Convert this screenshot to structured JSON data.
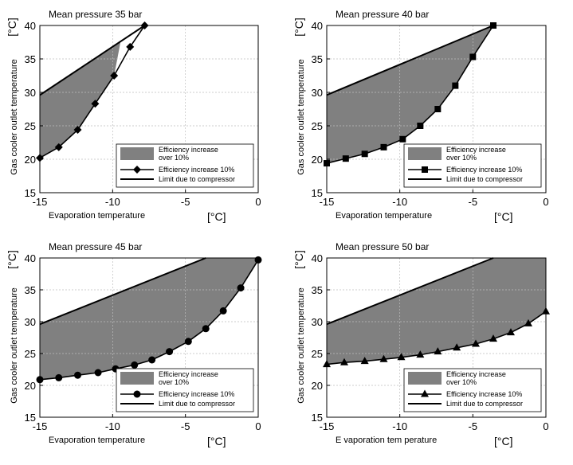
{
  "chart_data": [
    {
      "type": "area",
      "title": "Mean pressure 35 bar",
      "xlabel": "Evaporation temperature",
      "ylabel": "Gas cooler outlet temperature",
      "x_unit": "[°C]",
      "y_unit": "[°C]",
      "xlim": [
        -15,
        0
      ],
      "ylim": [
        15,
        40
      ],
      "xticks": [
        "-15",
        "-10",
        "-5",
        "0"
      ],
      "yticks": [
        "15",
        "20",
        "25",
        "30",
        "35",
        "40"
      ],
      "grid": true,
      "legend_position": "bottom-right",
      "marker": "diamond",
      "legend": [
        "Efficiency increase over 10%",
        "Efficiency increase 10%",
        "Limit due to compressor"
      ],
      "limit_line": {
        "x": [
          -15,
          -7.8
        ],
        "y": [
          29.6,
          40
        ]
      },
      "series": [
        {
          "name": "Efficiency increase 10%",
          "x": [
            -15,
            -13.7,
            -12.4,
            -11.2,
            -9.9,
            -8.8,
            -7.8
          ],
          "y": [
            20.2,
            21.8,
            24.4,
            28.3,
            32.5,
            36.8,
            40.0
          ]
        }
      ]
    },
    {
      "type": "area",
      "title": "Mean pressure 40 bar",
      "xlabel": "Evaporation temperature",
      "ylabel": "Gas cooler outlet temperature",
      "x_unit": "[°C]",
      "y_unit": "[°C]",
      "xlim": [
        -15,
        0
      ],
      "ylim": [
        15,
        40
      ],
      "xticks": [
        "-15",
        "-10",
        "-5",
        "0"
      ],
      "yticks": [
        "15",
        "20",
        "25",
        "30",
        "35",
        "40"
      ],
      "grid": true,
      "legend_position": "bottom-right",
      "marker": "square",
      "legend": [
        "Efficiency increase over 10%",
        "Efficiency increase 10%",
        "Limit due to compressor"
      ],
      "limit_line": {
        "x": [
          -15,
          -3.6
        ],
        "y": [
          29.6,
          40
        ]
      },
      "series": [
        {
          "name": "Efficiency increase 10%",
          "x": [
            -15,
            -13.7,
            -12.4,
            -11.1,
            -9.8,
            -8.6,
            -7.4,
            -6.2,
            -5.0,
            -3.6
          ],
          "y": [
            19.4,
            20.1,
            20.8,
            21.8,
            23.0,
            25.0,
            27.5,
            31.0,
            35.3,
            40.0
          ]
        }
      ]
    },
    {
      "type": "area",
      "title": "Mean pressure 45 bar",
      "xlabel": "Evaporation temperature",
      "ylabel": "Gas cooler outlet temperature",
      "x_unit": "[°C]",
      "y_unit": "[°C]",
      "xlim": [
        -15,
        0
      ],
      "ylim": [
        15,
        40
      ],
      "xticks": [
        "-15",
        "-10",
        "-5",
        "0"
      ],
      "yticks": [
        "15",
        "20",
        "25",
        "30",
        "35",
        "40"
      ],
      "grid": true,
      "legend_position": "bottom-right",
      "marker": "circle",
      "legend": [
        "Efficiency increase over 10%",
        "Efficiency increase 10%",
        "Limit due to compressor"
      ],
      "limit_line": {
        "x": [
          -15,
          -3.6
        ],
        "y": [
          29.6,
          40
        ]
      },
      "series": [
        {
          "name": "Efficiency increase 10%",
          "x": [
            -15,
            -13.7,
            -12.4,
            -11.0,
            -9.8,
            -8.5,
            -7.3,
            -6.1,
            -4.8,
            -3.6,
            -2.4,
            -1.2,
            0
          ],
          "y": [
            20.9,
            21.2,
            21.6,
            22.0,
            22.6,
            23.2,
            24.0,
            25.3,
            26.9,
            28.9,
            31.7,
            35.3,
            39.7
          ]
        }
      ]
    },
    {
      "type": "area",
      "title": "Mean pressure 50 bar",
      "xlabel": "E vaporation tem perature",
      "ylabel": "Gas cooler outlet temperature",
      "x_unit": "[°C]",
      "y_unit": "[°C]",
      "xlim": [
        -15,
        0
      ],
      "ylim": [
        15,
        40
      ],
      "xticks": [
        "-15",
        "-10",
        "-5",
        "0"
      ],
      "yticks": [
        "15",
        "20",
        "25",
        "30",
        "35",
        "40"
      ],
      "grid": true,
      "legend_position": "bottom-right",
      "marker": "triangle",
      "legend": [
        "Efficiency increase over 10%",
        "Efficiency increase 10%",
        "Limit due to compressor"
      ],
      "limit_line": {
        "x": [
          -15,
          -3.6
        ],
        "y": [
          29.6,
          40
        ]
      },
      "series": [
        {
          "name": "Efficiency increase 10%",
          "x": [
            -15,
            -13.8,
            -12.4,
            -11.1,
            -9.9,
            -8.6,
            -7.4,
            -6.1,
            -4.8,
            -3.6,
            -2.4,
            -1.2,
            0
          ],
          "y": [
            23.3,
            23.6,
            23.8,
            24.1,
            24.4,
            24.8,
            25.3,
            25.9,
            26.5,
            27.3,
            28.3,
            29.7,
            31.6
          ]
        }
      ]
    }
  ]
}
